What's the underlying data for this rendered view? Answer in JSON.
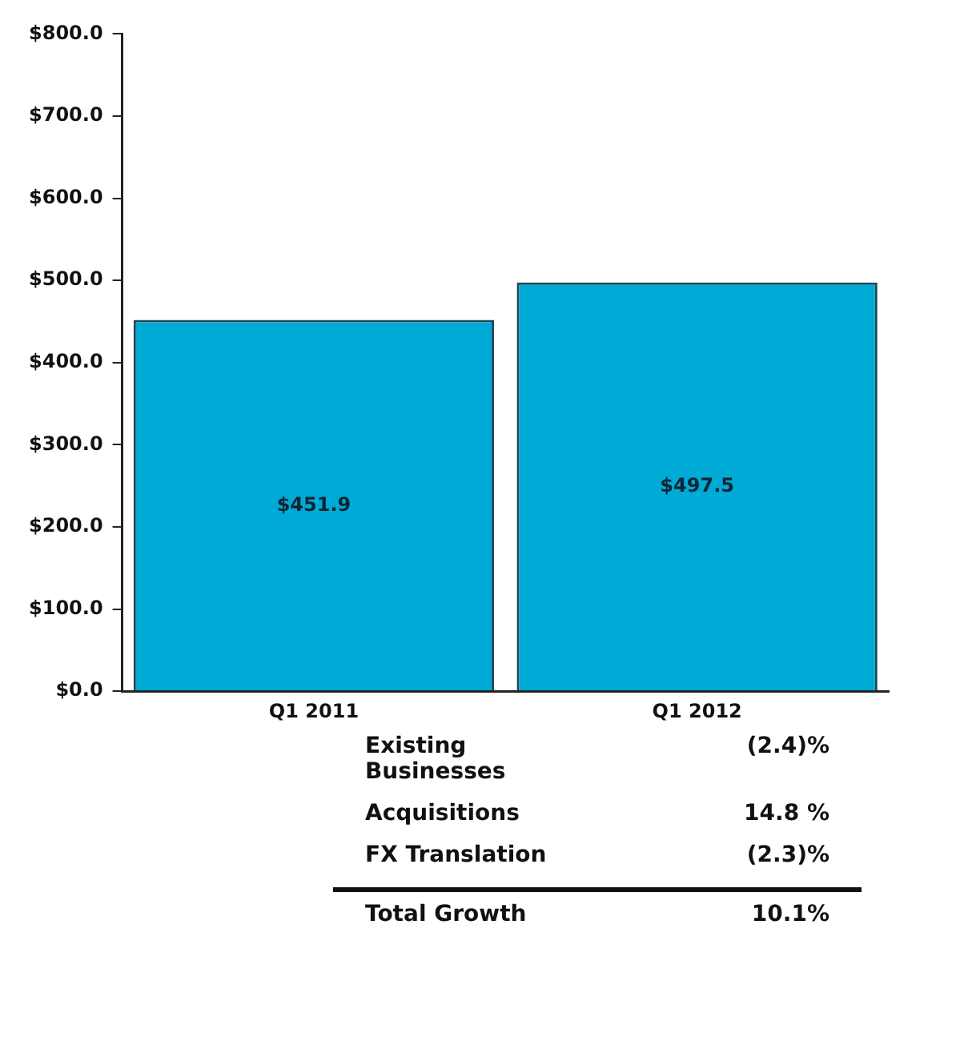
{
  "chart_data": {
    "type": "bar",
    "categories": [
      "Q1 2011",
      "Q1 2012"
    ],
    "values": [
      451.9,
      497.5
    ],
    "color": "#00aad6",
    "value_labels": [
      "$451.9",
      "$497.5"
    ],
    "ylim": [
      0,
      800
    ],
    "yticks": [
      {
        "value": 0,
        "label": "$0.0"
      },
      {
        "value": 100,
        "label": "$100.0"
      },
      {
        "value": 200,
        "label": "$200.0"
      },
      {
        "value": 300,
        "label": "$300.0"
      },
      {
        "value": 400,
        "label": "$400.0"
      },
      {
        "value": 500,
        "label": "$500.0"
      },
      {
        "value": 600,
        "label": "$600.0"
      },
      {
        "value": 700,
        "label": "$700.0"
      },
      {
        "value": 800,
        "label": "$800.0"
      }
    ],
    "grid": false,
    "legend": false,
    "annotations": [
      "Existing Businesses",
      "(2.4)%",
      "Acquisitions",
      "14.8 %",
      "FX Translation",
      "(2.3)%",
      "Total Growth",
      "10.1%"
    ]
  }
}
